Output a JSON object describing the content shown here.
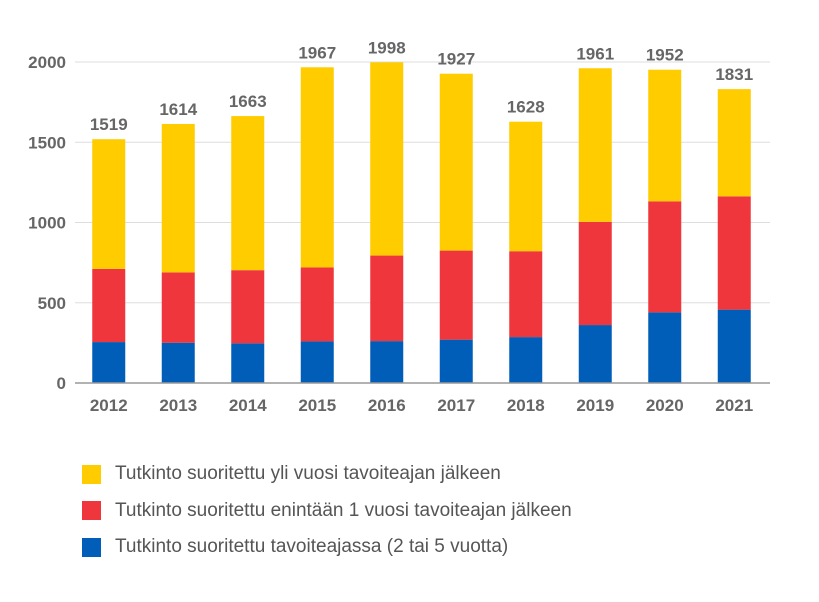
{
  "chart_data": {
    "type": "bar",
    "stacked": true,
    "categories": [
      "2012",
      "2013",
      "2014",
      "2015",
      "2016",
      "2017",
      "2018",
      "2019",
      "2020",
      "2021"
    ],
    "totals": [
      1519,
      1614,
      1663,
      1967,
      1998,
      1927,
      1628,
      1961,
      1952,
      1831
    ],
    "series": [
      {
        "name": "Tutkinto suoritettu tavoiteajassa (2 tai 5 vuotta)",
        "color": "#005EB8",
        "values": [
          255,
          251,
          247,
          259,
          261,
          270,
          286,
          361,
          440,
          457
        ]
      },
      {
        "name": "Tutkinto suoritettu enintään 1 vuosi tavoiteajan jälkeen",
        "color": "#EF363C",
        "values": [
          456,
          438,
          456,
          461,
          533,
          555,
          535,
          643,
          692,
          706
        ]
      },
      {
        "name": "Tutkinto suoritettu yli vuosi tavoiteajan jälkeen",
        "color": "#FFCC00",
        "values": [
          808,
          925,
          960,
          1247,
          1204,
          1102,
          807,
          957,
          820,
          668
        ]
      }
    ],
    "ylim": [
      0,
      2000
    ],
    "yticks": [
      0,
      500,
      1000,
      1500,
      2000
    ],
    "grid": true,
    "legend_placement": "bottom",
    "legend_order": [
      2,
      1,
      0
    ]
  }
}
